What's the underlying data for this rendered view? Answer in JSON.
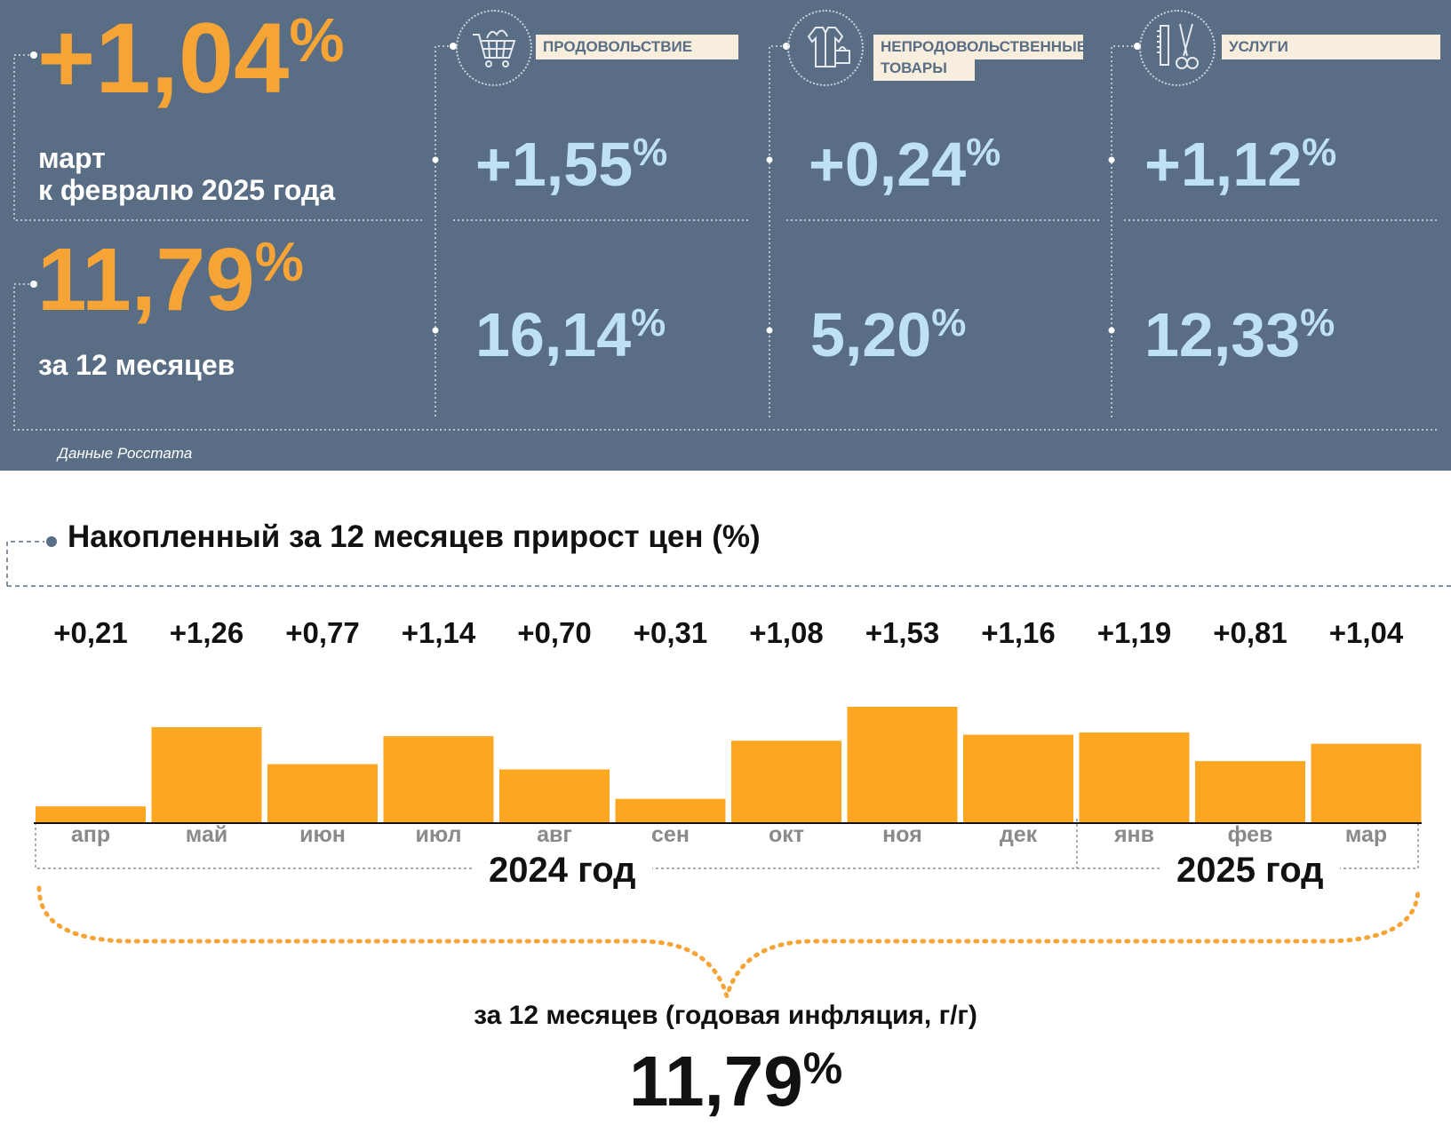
{
  "summary": {
    "monthly": {
      "value": "+1,04",
      "unit": "%",
      "line1": "март",
      "line2": "к февралю 2025 года"
    },
    "annual": {
      "value": "11,79",
      "unit": "%",
      "caption": "за 12 месяцев"
    },
    "source": "Данные Росстата"
  },
  "categories": [
    {
      "label": "ПРОДОВОЛЬСТВИЕ",
      "icon": "shopping-cart-icon",
      "monthly": "+1,55",
      "annual": "16,14",
      "unit": "%"
    },
    {
      "label_line1": "НЕПРОДОВОЛЬСТВЕННЫЕ",
      "label_line2": "ТОВАРЫ",
      "icon": "clothing-icon",
      "monthly": "+0,24",
      "annual": "5,20",
      "unit": "%"
    },
    {
      "label": "УСЛУГИ",
      "icon": "comb-scissors-icon",
      "monthly": "+1,12",
      "annual": "12,33",
      "unit": "%"
    }
  ],
  "chart_data": {
    "type": "bar",
    "title": "Накопленный за 12 месяцев прирост цен (%)",
    "categories": [
      "апр",
      "май",
      "июн",
      "июл",
      "авг",
      "сен",
      "окт",
      "ноя",
      "дек",
      "янв",
      "фев",
      "мар"
    ],
    "values": [
      0.21,
      1.26,
      0.77,
      1.14,
      0.7,
      0.31,
      1.08,
      1.53,
      1.16,
      1.19,
      0.81,
      1.04
    ],
    "value_labels": [
      "+0,21",
      "+1,26",
      "+0,77",
      "+1,14",
      "+0,70",
      "+0,31",
      "+1,08",
      "+1,53",
      "+1,16",
      "+1,19",
      "+0,81",
      "+1,04"
    ],
    "year_groups": [
      {
        "label": "2024 год",
        "from": "апр",
        "to": "дек"
      },
      {
        "label": "2025 год",
        "from": "янв",
        "to": "мар"
      }
    ],
    "bar_color": "#fca622",
    "grid": false,
    "annual_caption": "за 12 месяцев (годовая инфляция, г/г)",
    "annual_value": "11,79",
    "annual_unit": "%"
  }
}
